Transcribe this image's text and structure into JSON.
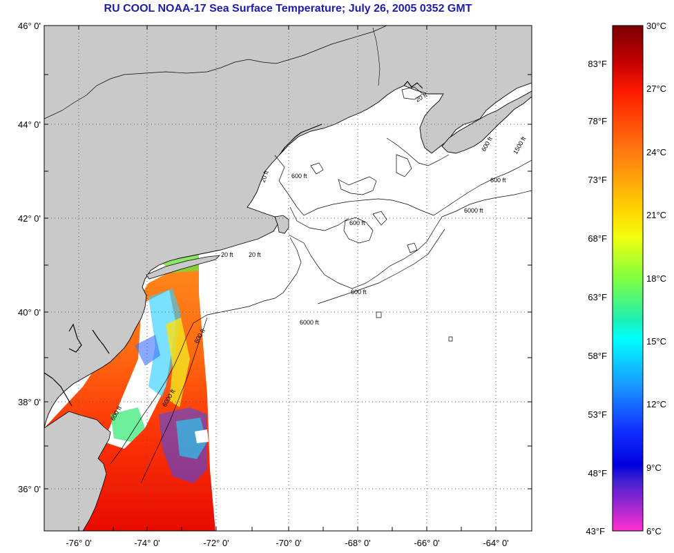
{
  "title": "RU COOL  NOAA-17  Sea Surface Temperature;  July 26, 2005 0352 GMT",
  "map": {
    "lat_ticks": [
      "46° 0'",
      "44° 0'",
      "42° 0'",
      "40° 0'",
      "38° 0'",
      "36° 0'"
    ],
    "lon_ticks": [
      "-76° 0'",
      "-74° 0'",
      "-72° 0'",
      "-70° 0'",
      "-68° 0'",
      "-66° 0'",
      "-64° 0'"
    ],
    "contour_labels": [
      "600 ft",
      "600 ft",
      "600 ft",
      "600 ft",
      "600 ft",
      "600 ft",
      "6000 ft",
      "6000 ft",
      "600 ft",
      "6000 ft",
      "1500 ft",
      "20 ft",
      "20 ft",
      "20 ft",
      "20 ft"
    ],
    "colors": {
      "land": "#c9c9c9",
      "ocean": "#ffffff",
      "grid": "#555555"
    }
  },
  "colorbar": {
    "celsius": [
      "30°C",
      "27°C",
      "24°C",
      "21°C",
      "18°C",
      "15°C",
      "12°C",
      "9°C",
      "6°C"
    ],
    "fahrenheit": [
      "83°F",
      "78°F",
      "73°F",
      "68°F",
      "63°F",
      "58°F",
      "53°F",
      "48°F",
      "43°F"
    ],
    "range_c": [
      6,
      30
    ]
  }
}
